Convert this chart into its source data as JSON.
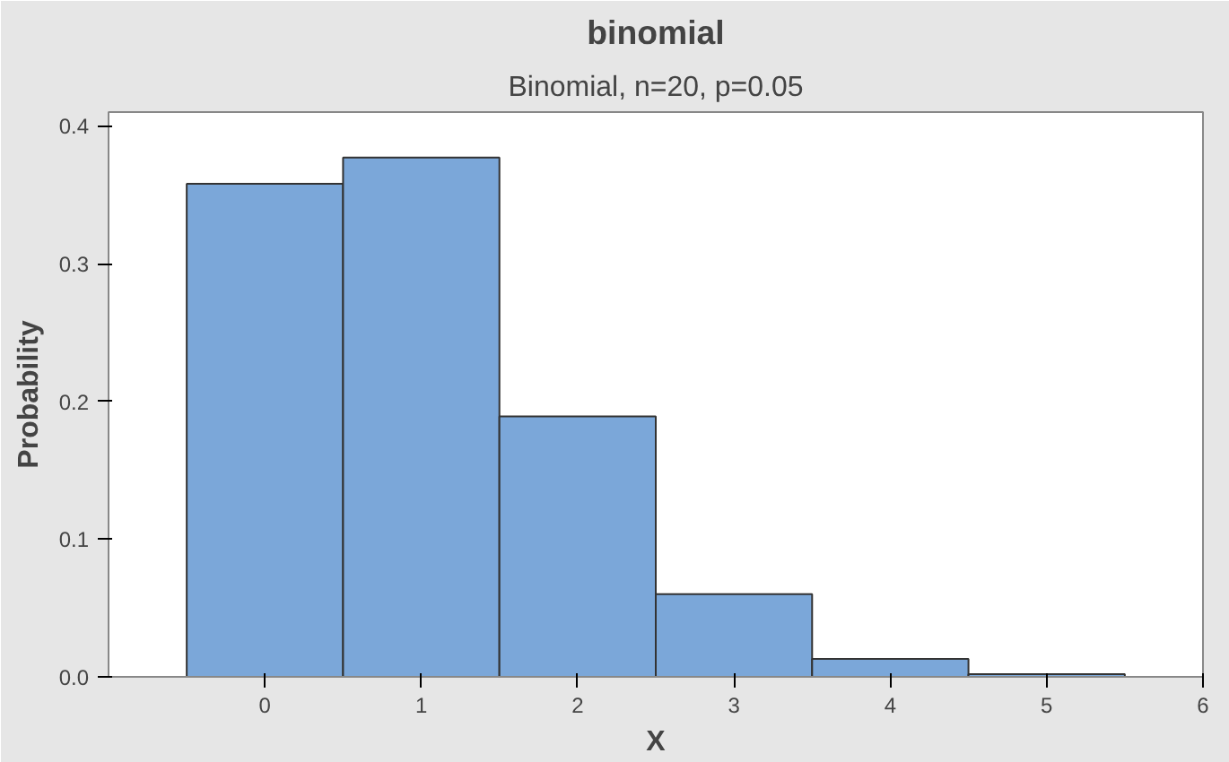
{
  "chart_data": {
    "type": "histogram",
    "title": "binomial",
    "subtitle": "Binomial, n=20, p=0.05",
    "xlabel": "X",
    "ylabel": "Probability",
    "bins": [
      -0.5,
      0.5,
      1.5,
      2.5,
      3.5,
      4.5,
      5.5
    ],
    "values": [
      0.358,
      0.377,
      0.189,
      0.06,
      0.013,
      0.002
    ],
    "color": "#7ba7d9",
    "xlim": [
      -1,
      6
    ],
    "ylim": [
      0,
      0.41
    ],
    "xticks": [
      0,
      1,
      2,
      3,
      4,
      5,
      6
    ],
    "yticks": [
      {
        "value": 0,
        "label": "0.0"
      },
      0.1,
      0.2,
      0.3,
      0.4
    ],
    "grid": false
  }
}
